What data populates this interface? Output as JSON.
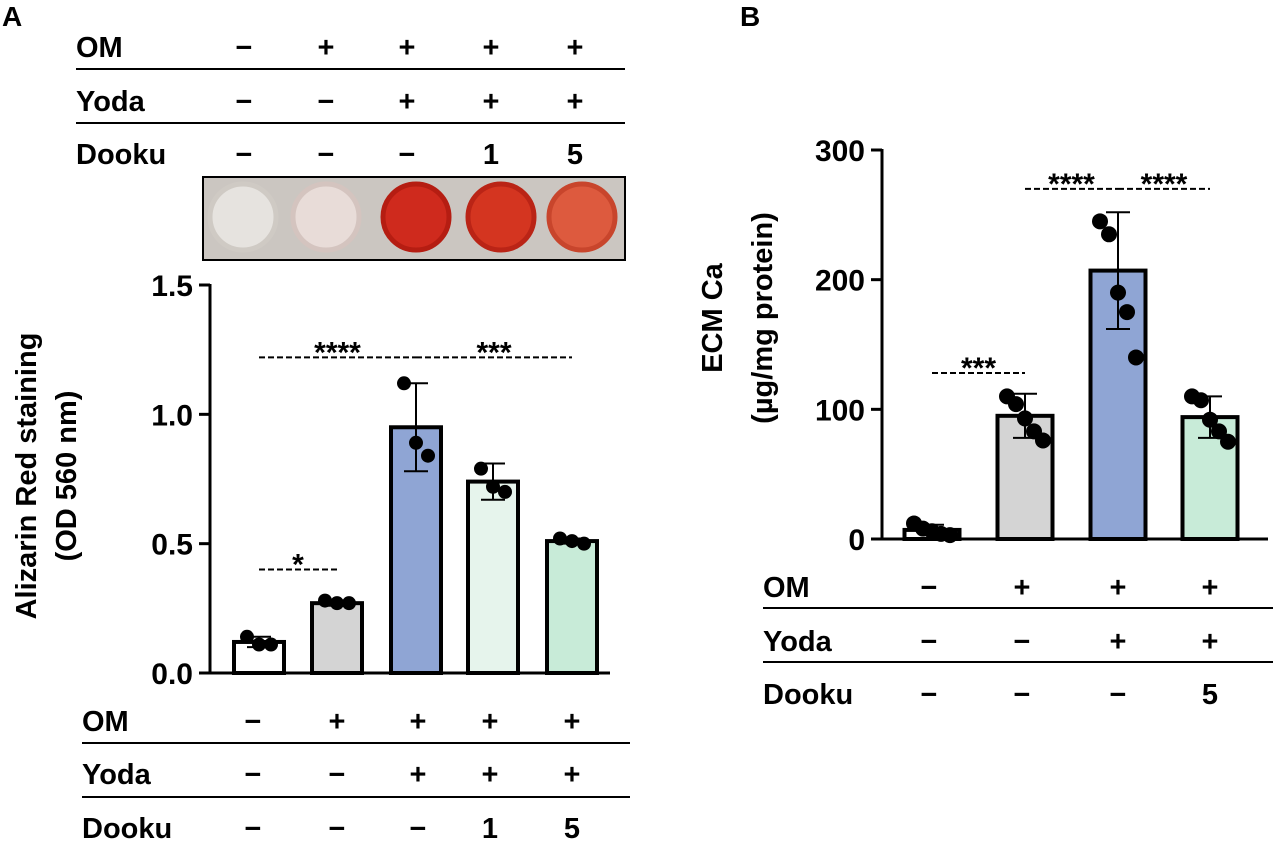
{
  "panels": [
    {
      "letter": "A",
      "top_table": {
        "rows": [
          {
            "label": "OM",
            "values": [
              "−",
              "+",
              "+",
              "+",
              "+"
            ]
          },
          {
            "label": "Yoda",
            "values": [
              "−",
              "−",
              "+",
              "+",
              "+"
            ]
          },
          {
            "label": "Dooku",
            "values": [
              "−",
              "−",
              "−",
              "1",
              "5"
            ]
          }
        ]
      },
      "plate_wells": [
        {
          "color": "#e6e3df",
          "rim": "#cfcac4"
        },
        {
          "color": "#e8dcd8",
          "rim": "#d4c4bf"
        },
        {
          "color": "#cf2a1d",
          "rim": "#b51d12"
        },
        {
          "color": "#d43520",
          "rim": "#ba2416"
        },
        {
          "color": "#dd5a3e",
          "rim": "#c8452c"
        }
      ],
      "bottom_table": {
        "rows": [
          {
            "label": "OM",
            "values": [
              "−",
              "+",
              "+",
              "+",
              "+"
            ]
          },
          {
            "label": "Yoda",
            "values": [
              "−",
              "−",
              "+",
              "+",
              "+"
            ]
          },
          {
            "label": "Dooku",
            "values": [
              "−",
              "−",
              "−",
              "1",
              "5"
            ]
          }
        ]
      }
    },
    {
      "letter": "B",
      "bottom_table": {
        "rows": [
          {
            "label": "OM",
            "values": [
              "−",
              "+",
              "+",
              "+"
            ]
          },
          {
            "label": "Yoda",
            "values": [
              "−",
              "−",
              "+",
              "+"
            ]
          },
          {
            "label": "Dooku",
            "values": [
              "−",
              "−",
              "−",
              "5"
            ]
          }
        ]
      }
    }
  ],
  "chart_data": [
    {
      "type": "bar",
      "ylabel_lines": [
        "Alizarin Red staining",
        "(OD 560 nm)"
      ],
      "ylim": [
        0,
        1.5
      ],
      "yticks": [
        "0.0",
        "0.5",
        "1.0",
        "1.5"
      ],
      "ytick_values": [
        0,
        0.5,
        1.0,
        1.5
      ],
      "values": [
        0.12,
        0.27,
        0.95,
        0.74,
        0.51
      ],
      "errors": [
        0.02,
        0.01,
        0.17,
        0.07,
        0.01
      ],
      "bar_colors": [
        "#ffffff",
        "#d4d4d4",
        "#8fa5d4",
        "#e6f4ec",
        "#c8ebd8"
      ],
      "points": [
        [
          0.14,
          0.11,
          0.11
        ],
        [
          0.28,
          0.27,
          0.27
        ],
        [
          1.12,
          0.89,
          0.84
        ],
        [
          0.79,
          0.72,
          0.7
        ],
        [
          0.52,
          0.51,
          0.5
        ]
      ],
      "significance": [
        {
          "from": 0,
          "to": 1,
          "label": "*",
          "y": 0.4
        },
        {
          "from": 0,
          "to": 2,
          "label": "****",
          "y": 1.22
        },
        {
          "from": 2,
          "to": 4,
          "label": "***",
          "y": 1.22
        }
      ]
    },
    {
      "type": "bar",
      "ylabel_lines": [
        "ECM Ca",
        "(µg/mg protein)"
      ],
      "ylim": [
        0,
        300
      ],
      "yticks": [
        "0",
        "100",
        "200",
        "300"
      ],
      "ytick_values": [
        0,
        100,
        200,
        300
      ],
      "values": [
        7,
        95,
        207,
        94
      ],
      "errors": [
        4,
        17,
        45,
        16
      ],
      "bar_colors": [
        "#ffffff",
        "#d4d4d4",
        "#8fa5d4",
        "#c8ebd8"
      ],
      "points": [
        [
          12,
          8,
          6,
          4,
          3
        ],
        [
          110,
          104,
          93,
          83,
          76
        ],
        [
          245,
          235,
          190,
          175,
          140
        ],
        [
          110,
          107,
          92,
          83,
          75
        ]
      ],
      "significance": [
        {
          "from": 0,
          "to": 1,
          "label": "***",
          "y": 128
        },
        {
          "from": 1,
          "to": 2,
          "label": "****",
          "y": 270
        },
        {
          "from": 2,
          "to": 3,
          "label": "****",
          "y": 270
        }
      ]
    }
  ]
}
